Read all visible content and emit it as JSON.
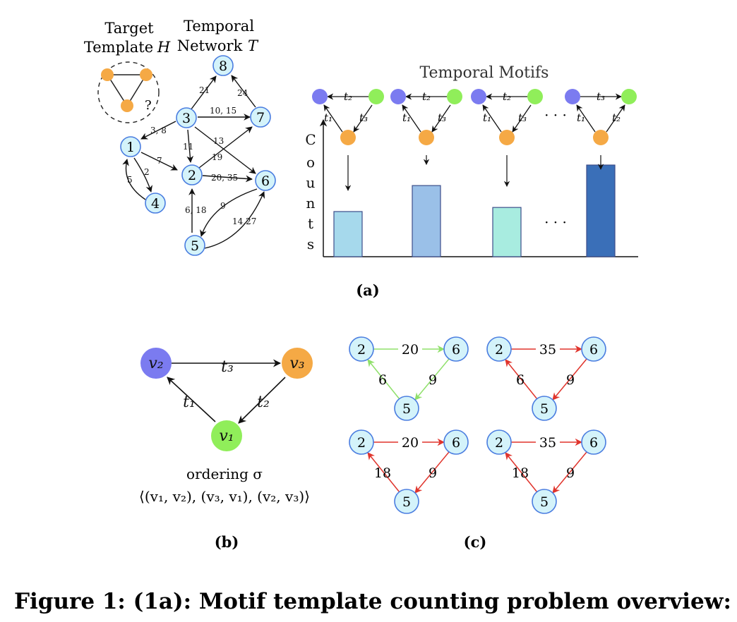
{
  "panel_a": {
    "template_title_1": "Target",
    "template_title_2": "Template",
    "template_symbol": "H",
    "template_question": "?",
    "network_title_1": "Temporal",
    "network_title_2": "Network",
    "network_symbol": "T",
    "nodes": [
      {
        "id": "1",
        "label": "1"
      },
      {
        "id": "2",
        "label": "2"
      },
      {
        "id": "3",
        "label": "3"
      },
      {
        "id": "4",
        "label": "4"
      },
      {
        "id": "5",
        "label": "5"
      },
      {
        "id": "6",
        "label": "6"
      },
      {
        "id": "7",
        "label": "7"
      },
      {
        "id": "8",
        "label": "8"
      }
    ],
    "edge_labels": {
      "e_3_8": "21",
      "e_7_8": "24",
      "e_3_7": "10, 15",
      "e_3_1": "3, 8",
      "e_3_2": "11",
      "e_3_6": "13",
      "e_2_7": "19",
      "e_1_2": "7",
      "e_1_4": "2",
      "e_4_1": "5",
      "e_2_6": "20, 35",
      "e_5_2": "6, 18",
      "e_6_5": "9",
      "e_5_6": "14,27"
    },
    "motifs_title": "Temporal Motifs",
    "axis_label": [
      "C",
      "o",
      "u",
      "n",
      "t",
      "s"
    ],
    "ellipsis": "· · ·",
    "motif_labels": [
      {
        "top": "t₂",
        "left": "t₁",
        "right": "t₃"
      },
      {
        "top": "t₂",
        "left": "t₁",
        "right": "t₃"
      },
      {
        "top": "t₂",
        "left": "t₁",
        "right": "t₃"
      },
      {
        "top": "t₃",
        "left": "t₁",
        "right": "t₂"
      }
    ],
    "bar_colors": [
      "#a6d9ec",
      "#9ac0e8",
      "#a8ece0",
      "#3a6fb8"
    ],
    "label": "(a)"
  },
  "chart_data": {
    "type": "bar",
    "title": "Temporal Motifs",
    "ylabel": "Counts",
    "categories": [
      "",
      "",
      "",
      "",
      ""
    ],
    "values": [
      0.33,
      0.52,
      0.36,
      null,
      0.67
    ]
  },
  "panel_b": {
    "v1": "v₁",
    "v2": "v₂",
    "v3": "v₃",
    "t1": "t₁",
    "t2": "t₂",
    "t3": "t₃",
    "ordering_label": "ordering σ",
    "ordering_value": "⟨(v₁, v₂), (v₃, v₁), (v₂, v₃)⟩",
    "label": "(b)",
    "colors": {
      "v1": "#90ee5a",
      "v2": "#7b7bf0",
      "v3": "#f5a945"
    }
  },
  "panel_c": {
    "instances": [
      {
        "n_left": "2",
        "n_right": "6",
        "n_bottom": "5",
        "top": "20",
        "left": "6",
        "right": "9",
        "color": "#8fe06a"
      },
      {
        "n_left": "2",
        "n_right": "6",
        "n_bottom": "5",
        "top": "35",
        "left": "6",
        "right": "9",
        "color": "#e0342c"
      },
      {
        "n_left": "2",
        "n_right": "6",
        "n_bottom": "5",
        "top": "20",
        "left": "18",
        "right": "9",
        "color": "#e0342c"
      },
      {
        "n_left": "2",
        "n_right": "6",
        "n_bottom": "5",
        "top": "35",
        "left": "18",
        "right": "9",
        "color": "#e0342c"
      }
    ],
    "label": "(c)"
  },
  "caption": "Figure 1: (1a): Motif template counting problem overview:",
  "colors": {
    "node_fill": "#d4f3fa",
    "node_stroke": "#4a7de0",
    "template_node": "#f5a945",
    "blue_node": "#7b7bf0",
    "green_node": "#90ee5a"
  }
}
